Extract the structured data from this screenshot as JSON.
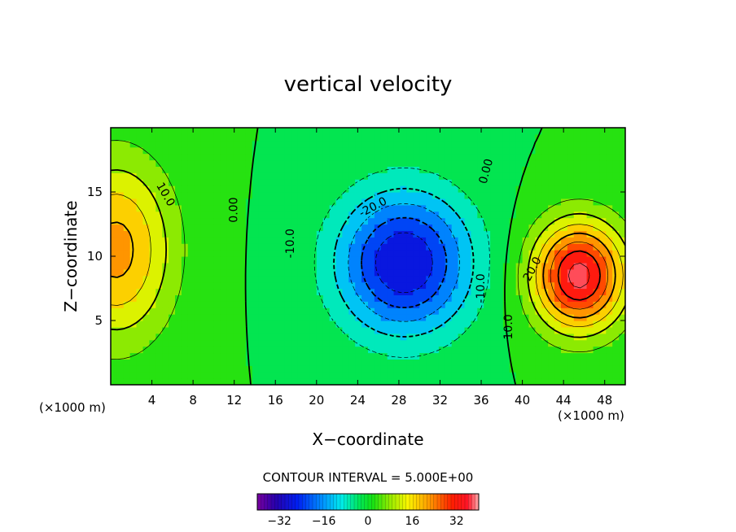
{
  "chart_data": {
    "type": "contour",
    "title": "vertical velocity",
    "xlabel": "X−coordinate",
    "ylabel": "Z−coordinate",
    "x_unit_left": "(×1000 m)",
    "x_unit_right": "(×1000 m)",
    "xlim": [
      0,
      50
    ],
    "ylim": [
      0,
      20
    ],
    "x_ticks": [
      4,
      8,
      12,
      16,
      20,
      24,
      28,
      32,
      36,
      40,
      44,
      48
    ],
    "y_ticks": [
      5,
      10,
      15
    ],
    "contour_interval_label": "CONTOUR INTERVAL = 5.000E+00",
    "contour_interval": 5.0,
    "contour_labels": [
      {
        "text": "10.0",
        "x": 5.3,
        "z": 14.8,
        "angle": 60
      },
      {
        "text": "0.00",
        "x": 12.0,
        "z": 13.6,
        "angle": -90
      },
      {
        "text": "-10.0",
        "x": 17.5,
        "z": 11.0,
        "angle": -90
      },
      {
        "text": "-20.0",
        "x": 25.5,
        "z": 13.8,
        "angle": -28
      },
      {
        "text": "0.00",
        "x": 36.5,
        "z": 16.6,
        "angle": -75
      },
      {
        "text": "-10.0",
        "x": 36.0,
        "z": 7.5,
        "angle": -90
      },
      {
        "text": "20.0",
        "x": 41.0,
        "z": 9.0,
        "angle": -62
      },
      {
        "text": "10.0",
        "x": 38.7,
        "z": 4.5,
        "angle": -90
      }
    ],
    "colorbar": {
      "min": -40,
      "max": 40,
      "ticks": [
        -32,
        -16,
        0,
        16,
        32
      ],
      "tick_labels": [
        "−32",
        "−16",
        "0",
        "16",
        "32"
      ]
    },
    "field_extrema": [
      {
        "kind": "max",
        "x": 0.5,
        "z": 10.5,
        "value": 22
      },
      {
        "kind": "min",
        "x": 28.5,
        "z": 9.5,
        "value": -30
      },
      {
        "kind": "max",
        "x": 45.5,
        "z": 8.5,
        "value": 37
      }
    ]
  }
}
